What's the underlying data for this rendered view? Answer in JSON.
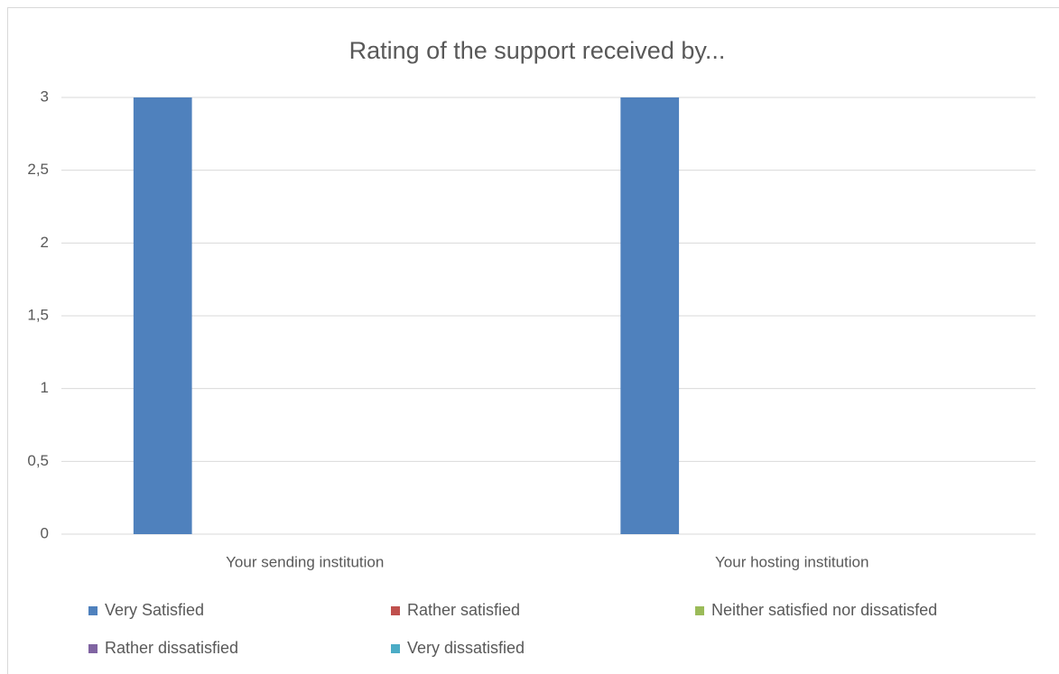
{
  "chart_data": {
    "type": "bar",
    "title": "Rating of the support received by...",
    "categories": [
      "Your sending institution",
      "Your hosting institution"
    ],
    "series": [
      {
        "name": "Very Satisfied",
        "color": "#4f81bd",
        "values": [
          3,
          3
        ]
      },
      {
        "name": "Rather satisfied",
        "color": "#c0504d",
        "values": [
          0,
          0
        ]
      },
      {
        "name": "Neither satisfied nor dissatisfed",
        "color": "#9bbb59",
        "values": [
          0,
          0
        ]
      },
      {
        "name": "Rather dissatisfied",
        "color": "#8064a2",
        "values": [
          0,
          0
        ]
      },
      {
        "name": "Very dissatisfied",
        "color": "#4bacc6",
        "values": [
          0,
          0
        ]
      }
    ],
    "ylim": [
      0,
      3
    ],
    "yticks": [
      0,
      {
        "value": 0.5,
        "label": "0,5"
      },
      1,
      {
        "value": 1.5,
        "label": "1,5"
      },
      2,
      {
        "value": 2.5,
        "label": "2,5"
      },
      3
    ],
    "grid": true,
    "legend": "bottom"
  }
}
